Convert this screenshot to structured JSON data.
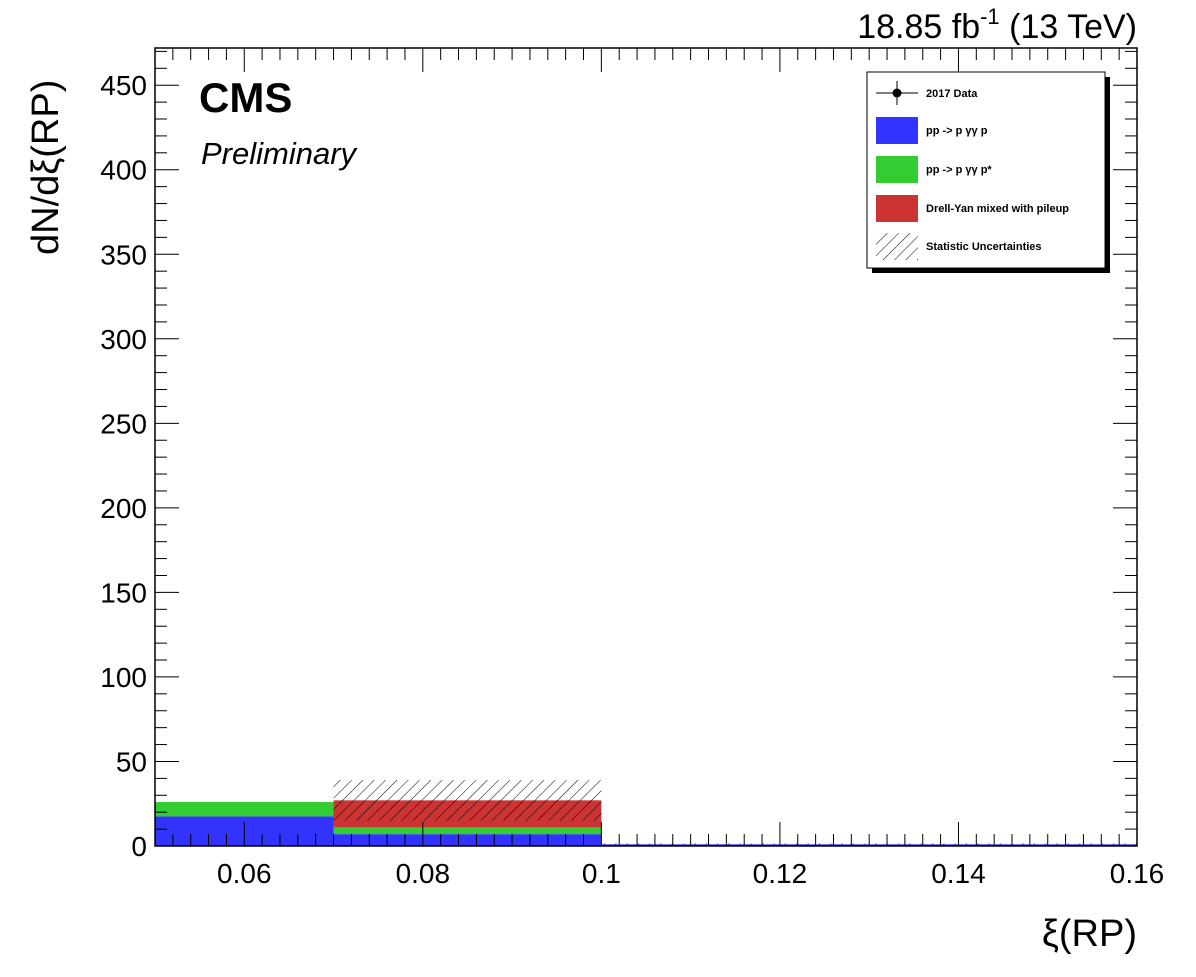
{
  "lumi_label": {
    "base": "18.85 fb",
    "sup": "-1",
    "rest": " (13 TeV)"
  },
  "cms_label": "CMS",
  "preliminary_label": "Preliminary",
  "legend": [
    {
      "key": "data",
      "label": "2017 Data",
      "marker": "point-with-error"
    },
    {
      "key": "pp_gg_p",
      "label": "pp -> p  γγ p",
      "color": "#3333ff"
    },
    {
      "key": "pp_gg_pstar",
      "label": "pp -> p  γγ p*",
      "color": "#33cc33"
    },
    {
      "key": "dy",
      "label": "Drell-Yan mixed with pileup",
      "color": "#cc3333"
    },
    {
      "key": "stat",
      "label": "Statistic Uncertainties",
      "marker": "hatch"
    }
  ],
  "chart_data": {
    "type": "bar",
    "stacked": true,
    "xlabel": "ξ(RP)",
    "ylabel": "dN/dξ(RP)",
    "xlim": [
      0.05,
      0.16
    ],
    "ylim": [
      0,
      472
    ],
    "x_ticks": [
      "0.06",
      "0.08",
      "0.1",
      "0.12",
      "0.14",
      "0.16"
    ],
    "y_ticks": [
      "0",
      "50",
      "100",
      "150",
      "200",
      "250",
      "300",
      "350",
      "400",
      "450"
    ],
    "bin_edges": [
      0.05,
      0.07,
      0.1,
      0.16
    ],
    "series": [
      {
        "name": "pp -> p  γγ p",
        "color": "#3333ff",
        "values": [
          17.5,
          7,
          1
        ]
      },
      {
        "name": "pp -> p  γγ p*",
        "color": "#33cc33",
        "values": [
          8.5,
          4,
          0
        ]
      },
      {
        "name": "Drell-Yan mixed with pileup",
        "color": "#cc3333",
        "values": [
          0,
          16,
          0
        ]
      }
    ],
    "stat_uncertainty": [
      {
        "low": 26,
        "high": 26
      },
      {
        "low": 15,
        "high": 39
      },
      {
        "low": 0.5,
        "high": 1.5
      }
    ],
    "data_points": []
  }
}
